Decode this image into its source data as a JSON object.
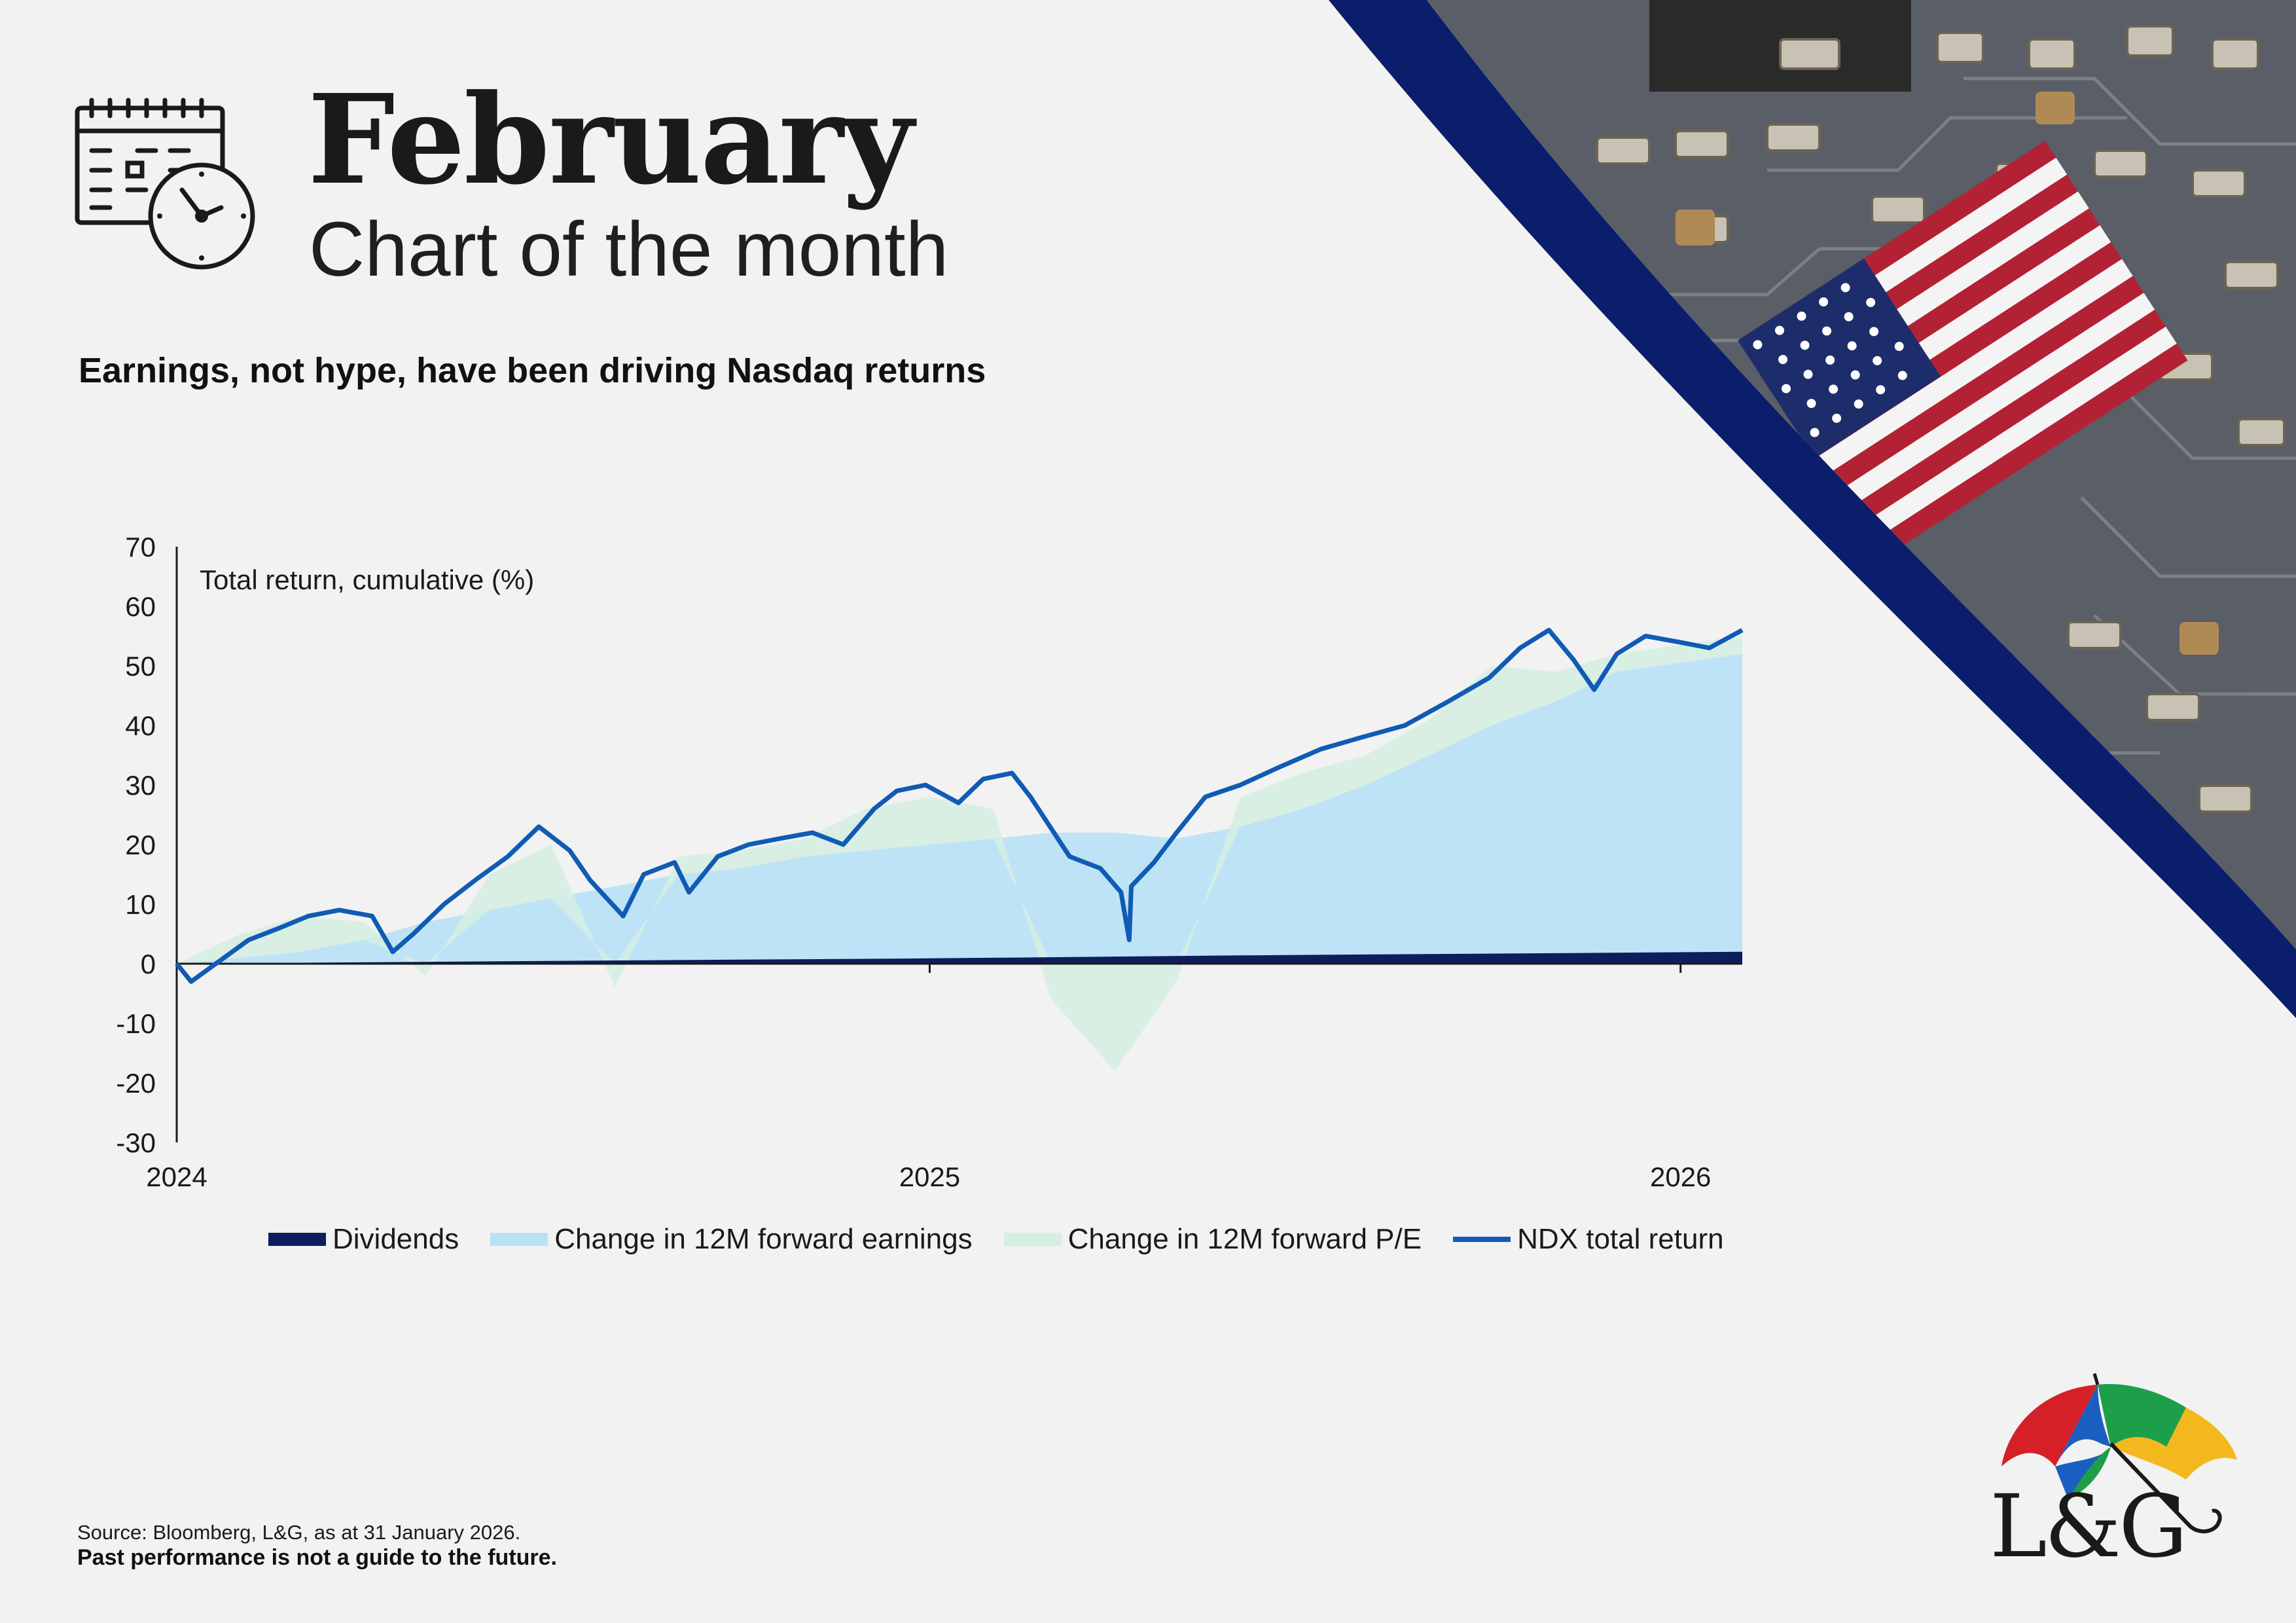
{
  "header": {
    "month": "February",
    "subtitle": "Chart of the month",
    "headline": "Earnings, not hype, have been driving Nasdaq returns"
  },
  "icons": {
    "calendar": "calendar-clock-icon",
    "logo": "umbrella-logo-icon"
  },
  "colors": {
    "dividends": "#0c1e5c",
    "earnings": "#b8e1f6",
    "pe": "#d5efe2",
    "ndx": "#0f5bb5",
    "navy_band": "#0b1e6b",
    "umbrella": [
      "#d62027",
      "#1d9e48",
      "#1a5fbf",
      "#f4b81f"
    ]
  },
  "chart_data": {
    "type": "area",
    "ylabel": "Total return, cumulative (%)",
    "ylim": [
      -30,
      70
    ],
    "yticks": [
      "70",
      "60",
      "50",
      "40",
      "30",
      "20",
      "10",
      "0",
      "-10",
      "-20",
      "-30"
    ],
    "xticks": [
      "2024",
      "2025",
      "2026"
    ],
    "x_range": [
      "2024-01-01",
      "2026-01-31"
    ],
    "grid": false,
    "legend_position": "bottom",
    "series": [
      {
        "name": "Dividends",
        "style": "bar",
        "x": [
          "2024-01-01",
          "2024-06-01",
          "2025-01-01",
          "2025-06-01",
          "2026-01-31"
        ],
        "values": [
          0,
          0.4,
          0.9,
          1.4,
          2.0
        ]
      },
      {
        "name": "Change in 12M forward earnings",
        "style": "area",
        "x": [
          "2024-01-01",
          "2024-02-01",
          "2024-03-01",
          "2024-04-01",
          "2024-05-01",
          "2024-06-01",
          "2024-07-01",
          "2024-08-01",
          "2024-09-01",
          "2024-10-01",
          "2024-11-01",
          "2024-12-01",
          "2025-01-01",
          "2025-02-01",
          "2025-03-01",
          "2025-04-01",
          "2025-05-01",
          "2025-06-01",
          "2025-07-01",
          "2025-08-01",
          "2025-09-01",
          "2025-10-01",
          "2025-11-01",
          "2025-12-01",
          "2026-01-31"
        ],
        "values": [
          0,
          1,
          2,
          4,
          7,
          9,
          11,
          13,
          15,
          16,
          18,
          19,
          20,
          21,
          22,
          22,
          21,
          23,
          26,
          30,
          35,
          40,
          44,
          49,
          52
        ]
      },
      {
        "name": "Change in 12M forward P/E",
        "style": "area",
        "x": [
          "2024-01-01",
          "2024-02-01",
          "2024-03-01",
          "2024-04-01",
          "2024-05-01",
          "2024-06-01",
          "2024-07-01",
          "2024-08-01",
          "2024-09-01",
          "2024-10-01",
          "2024-11-01",
          "2024-12-01",
          "2025-01-01",
          "2025-02-01",
          "2025-03-01",
          "2025-04-01",
          "2025-05-01",
          "2025-06-01",
          "2025-07-01",
          "2025-08-01",
          "2025-09-01",
          "2025-10-01",
          "2025-11-01",
          "2025-12-01",
          "2026-01-31"
        ],
        "values": [
          0,
          4,
          6,
          3,
          -2,
          6,
          9,
          -4,
          3,
          3,
          3,
          7,
          8,
          5,
          -6,
          -18,
          -3,
          5,
          6,
          5,
          6,
          10,
          5,
          3,
          3
        ]
      },
      {
        "name": "NDX total return",
        "style": "line",
        "x": [
          "2024-01-01",
          "2024-01-08",
          "2024-01-20",
          "2024-02-05",
          "2024-02-20",
          "2024-03-05",
          "2024-03-20",
          "2024-04-05",
          "2024-04-15",
          "2024-04-25",
          "2024-05-10",
          "2024-05-25",
          "2024-06-10",
          "2024-06-25",
          "2024-07-10",
          "2024-07-20",
          "2024-08-05",
          "2024-08-15",
          "2024-08-30",
          "2024-09-06",
          "2024-09-20",
          "2024-10-05",
          "2024-10-20",
          "2024-11-05",
          "2024-11-20",
          "2024-12-05",
          "2024-12-16",
          "2024-12-30",
          "2025-01-15",
          "2025-01-27",
          "2025-02-10",
          "2025-02-19",
          "2025-03-10",
          "2025-03-25",
          "2025-04-04",
          "2025-04-08",
          "2025-04-09",
          "2025-04-20",
          "2025-05-01",
          "2025-05-15",
          "2025-06-01",
          "2025-06-20",
          "2025-07-10",
          "2025-07-30",
          "2025-08-20",
          "2025-09-10",
          "2025-09-30",
          "2025-10-15",
          "2025-10-29",
          "2025-11-10",
          "2025-11-20",
          "2025-12-01",
          "2025-12-15",
          "2025-12-31",
          "2026-01-15",
          "2026-01-31"
        ],
        "values": [
          0,
          -3,
          0,
          4,
          6,
          8,
          9,
          8,
          2,
          5,
          10,
          14,
          18,
          23,
          19,
          14,
          8,
          15,
          17,
          12,
          18,
          20,
          21,
          22,
          20,
          26,
          29,
          30,
          27,
          31,
          32,
          28,
          18,
          16,
          12,
          4,
          13,
          17,
          22,
          28,
          30,
          33,
          36,
          38,
          40,
          44,
          48,
          53,
          56,
          51,
          46,
          52,
          55,
          54,
          53,
          56
        ]
      }
    ]
  },
  "footer": {
    "source": "Source: Bloomberg, L&G, as at 31 January 2026.",
    "disclaimer": "Past performance is not a guide to the future."
  },
  "brand": {
    "logo_text": "L&G"
  }
}
